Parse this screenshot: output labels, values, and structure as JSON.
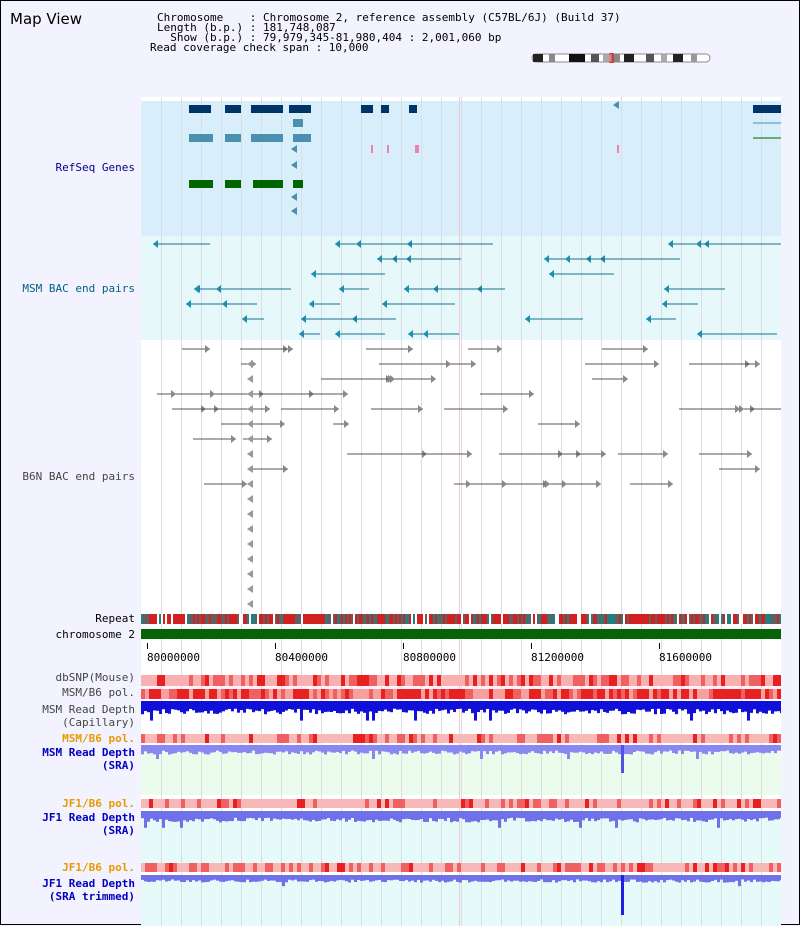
{
  "header": {
    "title": "Map View",
    "chromosome_line": "Chromosome    : Chromosome 2, reference assembly (C57BL/6J) (Build 37)",
    "length_line": "Length (b.p.) : 181,748,087",
    "show_line": "  Show (b.p.) : 79,979,345-81,980,404 : 2,001,060 bp",
    "coverage_line": "Read coverage check span : 10,000"
  },
  "tracks": {
    "refseq": "RefSeq Genes",
    "msm_bac": "MSM BAC end pairs",
    "b6n_bac": "B6N BAC end pairs",
    "repeat": "Repeat",
    "chromosome": "chromosome 2",
    "dbsnp": "dbSNP(Mouse)",
    "msm_b6_pol": "MSM/B6 pol.",
    "msm_depth_cap_1": "MSM Read Depth",
    "msm_depth_cap_2": "(Capillary)",
    "msm_b6_pol_2": "MSM/B6 pol.",
    "msm_depth_sra_1": "MSM Read Depth",
    "msm_depth_sra_2": "(SRA)",
    "jf1_b6_pol": "JF1/B6 pol.",
    "jf1_depth_sra_1": "JF1 Read Depth",
    "jf1_depth_sra_2": "(SRA)",
    "jf1_b6_pol_2": "JF1/B6 pol.",
    "jf1_depth_trim_1": "JF1 Read Depth",
    "jf1_depth_trim_2": "(SRA trimmed)"
  },
  "ruler": {
    "ticks": [
      "80000000",
      "80400000",
      "80800000",
      "81200000",
      "81600000"
    ]
  },
  "colors": {
    "refseq": "#00008b",
    "msm": "#005f7f",
    "b6n": "#444444",
    "orange": "#e89a00",
    "blue": "#0000c0"
  }
}
